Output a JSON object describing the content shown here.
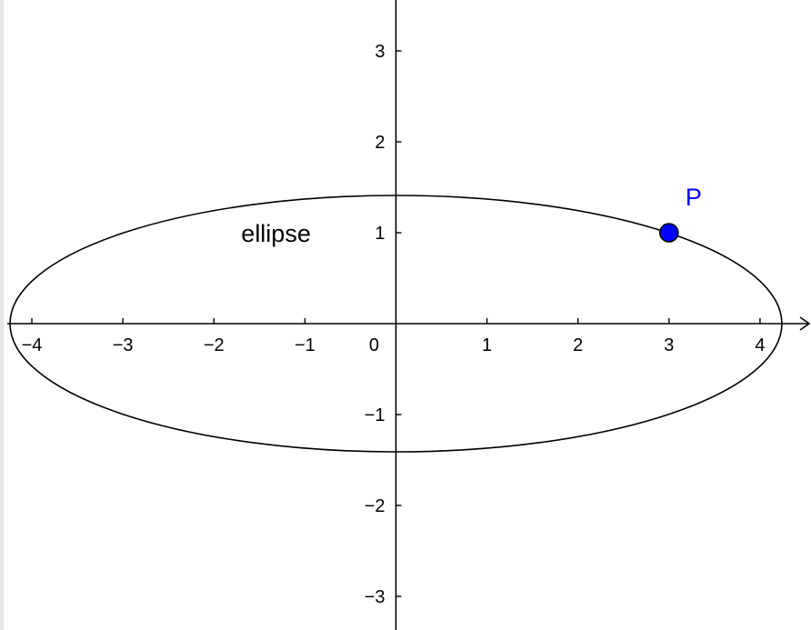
{
  "graphics_view": {
    "x_range": [
      -4.35,
      4.56
    ],
    "y_range": [
      -3.37,
      3.56
    ],
    "grid": false,
    "axis_color": "#000000",
    "curve_color": "#000000",
    "point_color": "#0000ff",
    "point_outline_color": "#000000",
    "x_axis": {
      "arrow": true,
      "ticks": [
        -4,
        -3,
        -2,
        -1,
        0,
        1,
        2,
        3,
        4
      ],
      "tick_labels": [
        "−4",
        "−3",
        "−2",
        "−1",
        "0",
        "1",
        "2",
        "3",
        "4"
      ]
    },
    "y_axis": {
      "arrow": false,
      "ticks": [
        -3,
        -2,
        -1,
        1,
        2,
        3
      ],
      "tick_labels": [
        "−3",
        "−2",
        "−1",
        "1",
        "2",
        "3"
      ]
    }
  },
  "objects": {
    "ellipse": {
      "label": "ellipse",
      "center": [
        0,
        0
      ],
      "semi_major_axis": 4.24,
      "semi_minor_axis": 1.41,
      "label_position": [
        -1.7,
        0.9
      ]
    },
    "point": {
      "label": "P",
      "x": 3,
      "y": 1,
      "label_offset": [
        0.18,
        0.3
      ]
    }
  }
}
